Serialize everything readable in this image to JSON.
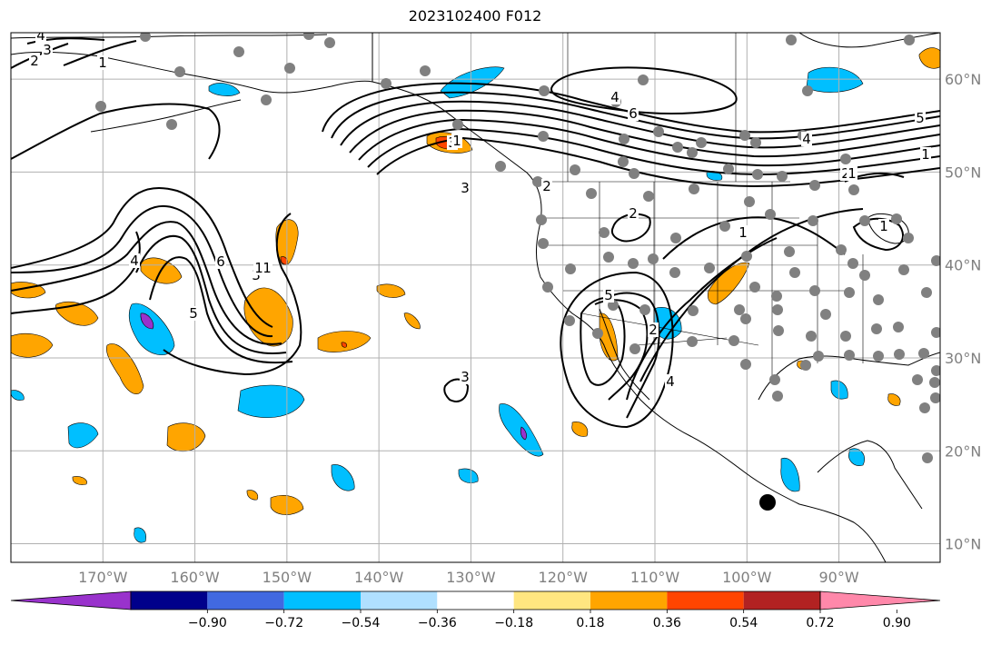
{
  "title": "2023102400 F012",
  "map": {
    "lon_range": [
      -180,
      -79
    ],
    "lat_range": [
      8,
      65
    ],
    "lon_ticks": [
      {
        "value": -170,
        "label": "170°W"
      },
      {
        "value": -160,
        "label": "160°W"
      },
      {
        "value": -150,
        "label": "150°W"
      },
      {
        "value": -140,
        "label": "140°W"
      },
      {
        "value": -130,
        "label": "130°W"
      },
      {
        "value": -120,
        "label": "120°W"
      },
      {
        "value": -110,
        "label": "110°W"
      },
      {
        "value": -100,
        "label": "100°W"
      },
      {
        "value": -90,
        "label": "90°W"
      }
    ],
    "lat_ticks": [
      {
        "value": 10,
        "label": "10°N"
      },
      {
        "value": 20,
        "label": "20°N"
      },
      {
        "value": 30,
        "label": "30°N"
      },
      {
        "value": 40,
        "label": "40°N"
      },
      {
        "value": 50,
        "label": "50°N"
      },
      {
        "value": 60,
        "label": "60°N"
      }
    ],
    "grid": true,
    "tick_color": "#808080"
  },
  "colorbar": {
    "labels": [
      "−0.90",
      "−0.72",
      "−0.54",
      "−0.36",
      "−0.18",
      "0.18",
      "0.36",
      "0.54",
      "0.72",
      "0.90"
    ],
    "colors": [
      "#9932cc",
      "#00008b",
      "#4169e1",
      "#00bfff",
      "#b0e0ff",
      "#ffffff",
      "#ffe680",
      "#ffa500",
      "#ff4500",
      "#b22222",
      "#ff88aa"
    ],
    "extend": "both"
  },
  "contour_labels": [
    "4",
    "3",
    "2",
    "1",
    "4",
    "6",
    "5",
    "4",
    "3",
    "2",
    "1",
    "6",
    "5",
    "4",
    "1",
    "3",
    "2",
    "1",
    "1",
    "2",
    "3",
    "4",
    "5",
    "1",
    "3",
    "2",
    "1",
    "1"
  ],
  "colors": {
    "orange": "#ffa500",
    "red": "#ff4500",
    "cyan": "#00bfff",
    "purple": "#9932cc",
    "station": "#808080"
  }
}
